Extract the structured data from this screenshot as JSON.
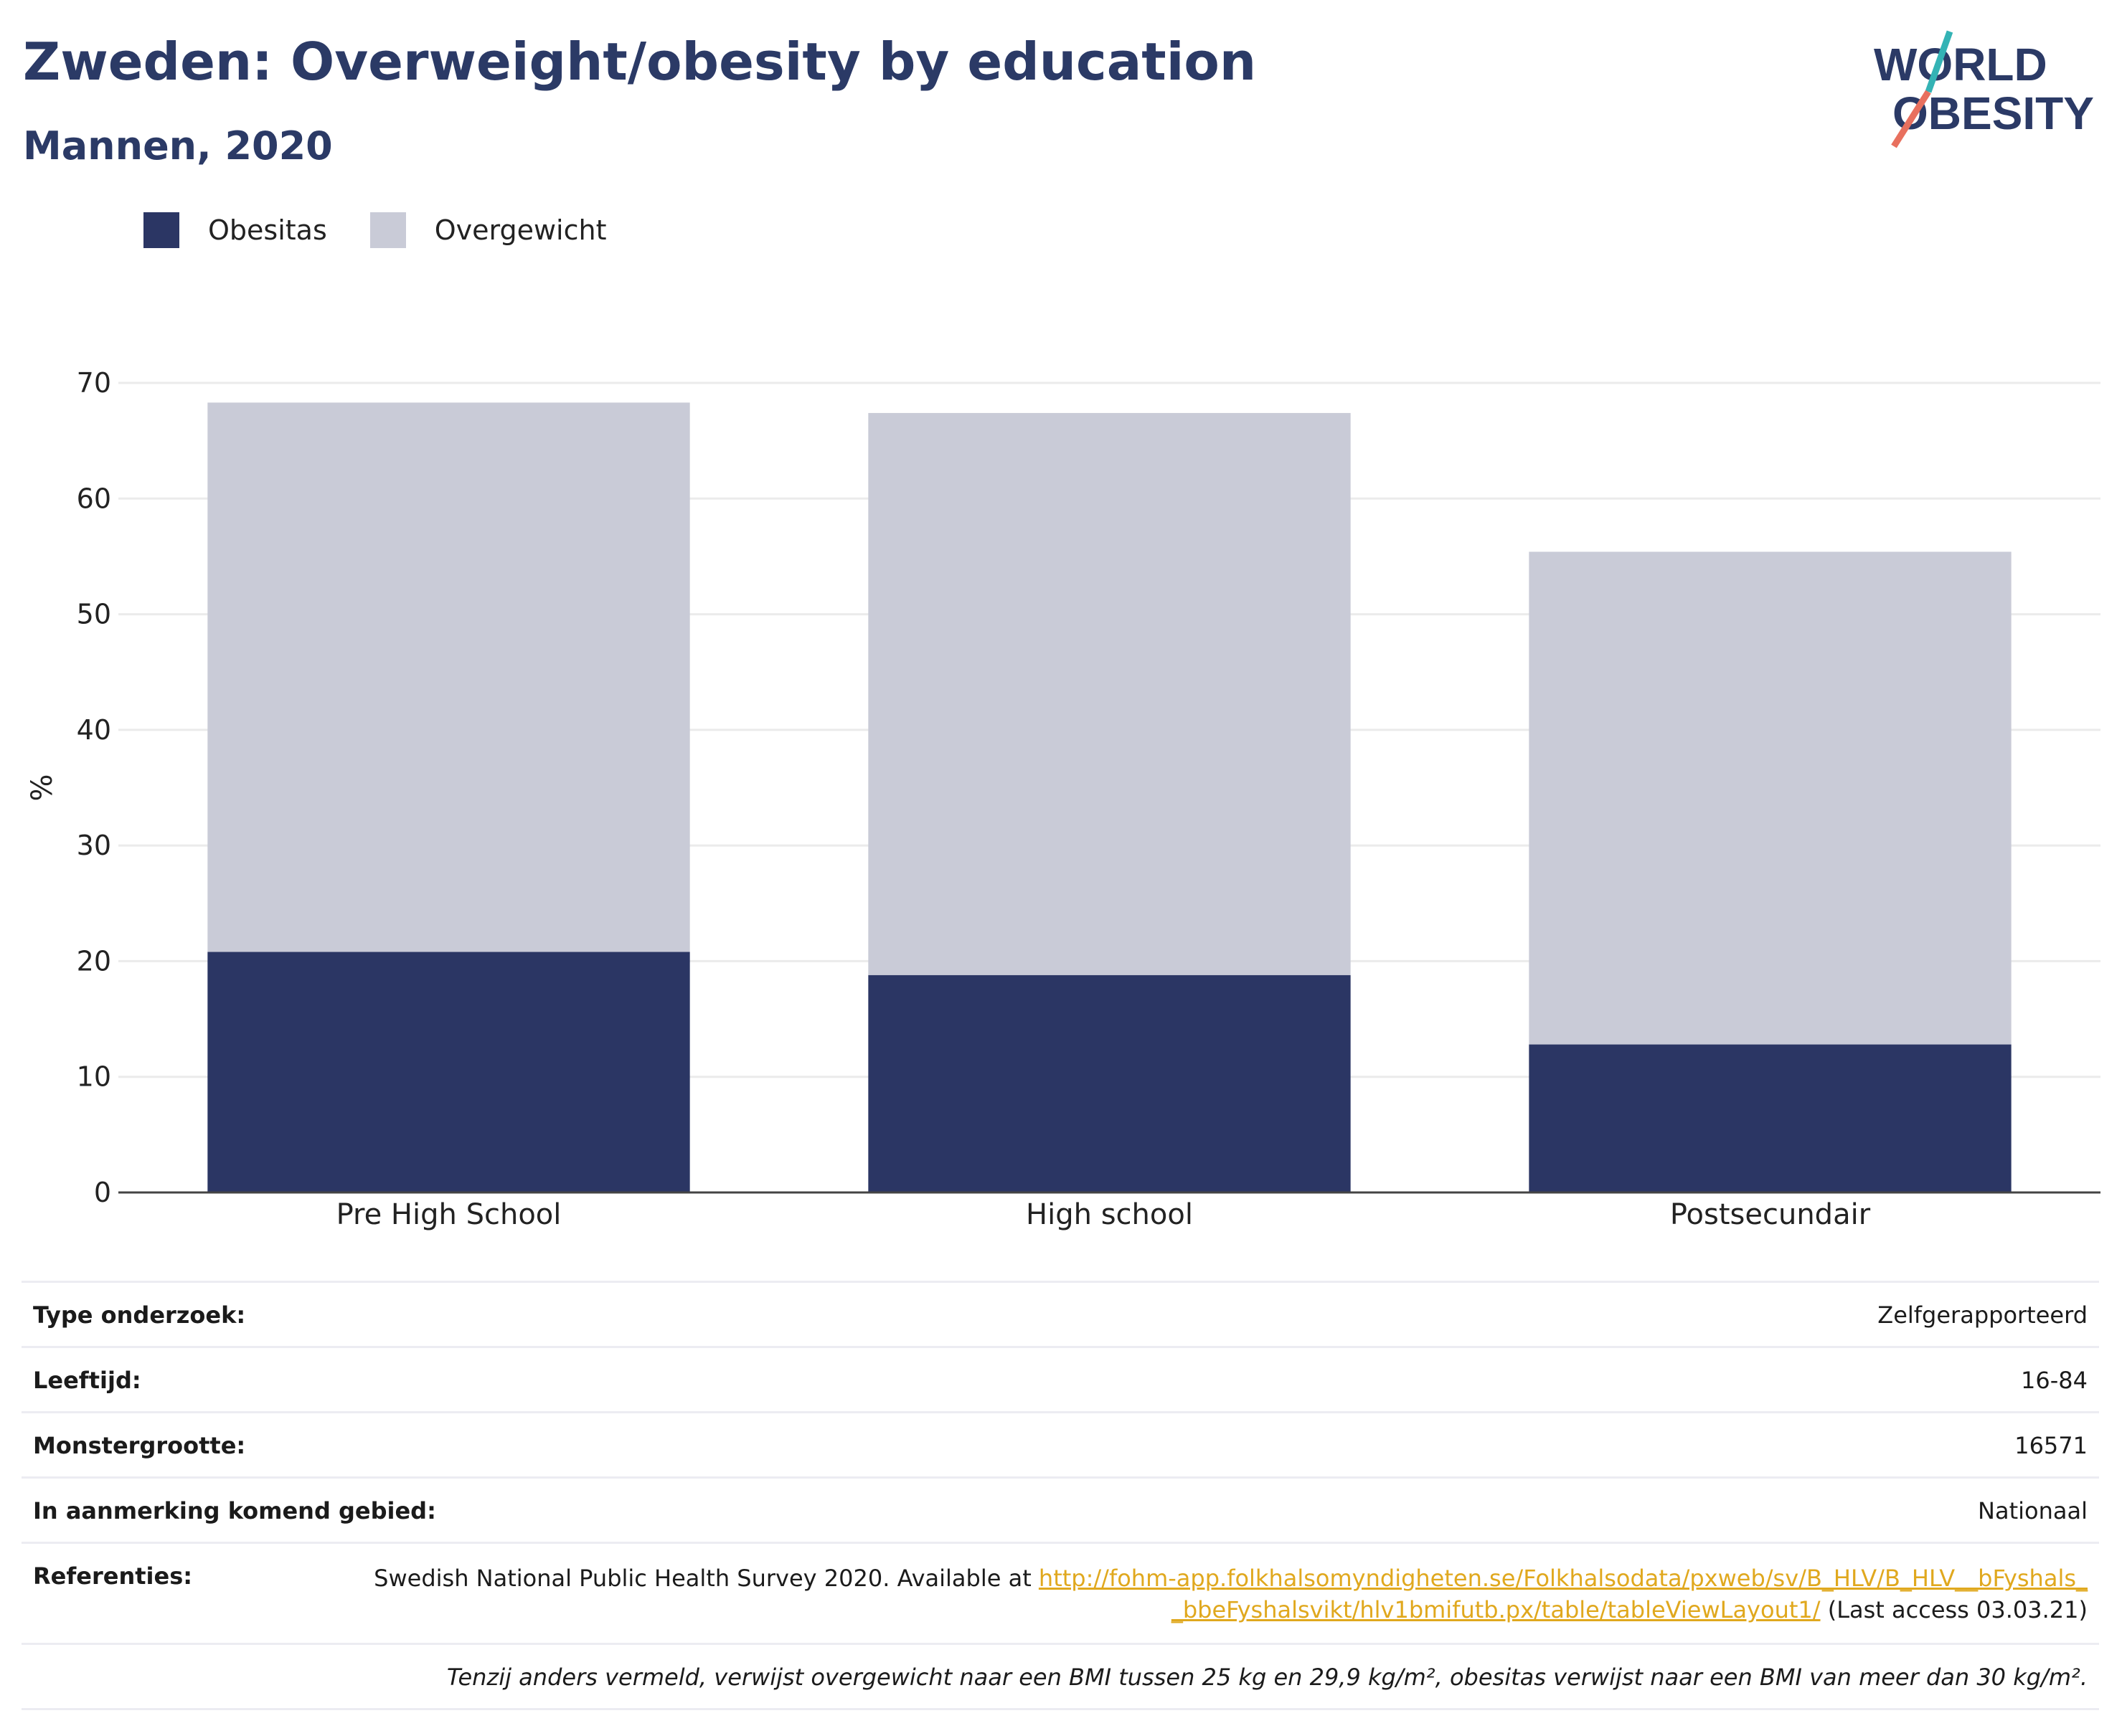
{
  "header": {
    "title": "Zweden: Overweight/obesity by education",
    "subtitle": "Mannen, 2020"
  },
  "logo": {
    "line1": "WORLD",
    "line2": "OBESITY"
  },
  "colors": {
    "obesitas": "#2b3664",
    "overgewicht": "#c9cbd7",
    "accent_teal": "#34b3b5",
    "accent_red": "#e8705e",
    "link": "#e0a81e"
  },
  "chart_data": {
    "type": "bar",
    "stacked": true,
    "categories": [
      "Pre High School",
      "High school",
      "Postsecundair"
    ],
    "series": [
      {
        "name": "Obesitas",
        "values": [
          20.8,
          18.8,
          12.8
        ]
      },
      {
        "name": "Overgewicht",
        "values": [
          47.5,
          48.6,
          42.6
        ]
      }
    ],
    "totals": [
      68.3,
      67.4,
      55.4
    ],
    "ylabel": "%",
    "xlabel": "",
    "ylim": [
      0,
      70
    ],
    "yticks": [
      0,
      10,
      20,
      30,
      40,
      50,
      60,
      70
    ],
    "grid": true,
    "legend_position": "top-left"
  },
  "info": {
    "type_label": "Type onderzoek:",
    "type_value": "Zelfgerapporteerd",
    "age_label": "Leeftijd:",
    "age_value": "16-84",
    "sample_label": "Monstergrootte:",
    "sample_value": "16571",
    "area_label": "In aanmerking komend gebied:",
    "area_value": "Nationaal",
    "ref_label": "Referenties:",
    "ref_text": "Swedish National Public Health Survey 2020. Available at ",
    "ref_link": "http://fohm-app.folkhalsomyndigheten.se/Folkhalsodata/pxweb/sv/B_HLV/B_HLV__bFyshals__bbeFyshalsvikt/hlv1bmifutb.px/table/tableViewLayout1/",
    "ref_suffix": " (Last access 03.03.21)",
    "note": "Tenzij anders vermeld, verwijst overgewicht naar een BMI tussen 25 kg en 29,9 kg/m², obesitas verwijst naar een BMI van meer dan 30 kg/m²."
  }
}
